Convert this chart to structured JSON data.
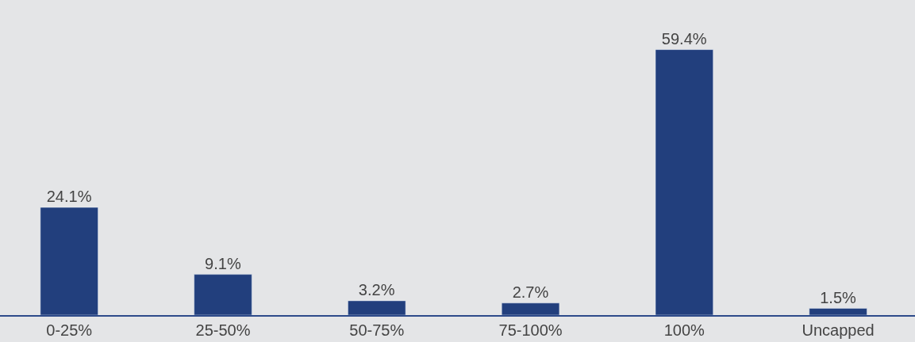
{
  "chart_data": {
    "type": "bar",
    "categories": [
      "0-25%",
      "25-50%",
      "50-75%",
      "75-100%",
      "100%",
      "Uncapped"
    ],
    "values": [
      24.1,
      9.1,
      3.2,
      2.7,
      59.4,
      1.5
    ],
    "value_labels": [
      "24.1%",
      "9.1%",
      "3.2%",
      "2.7%",
      "59.4%",
      "1.5%"
    ],
    "color": "#223f7d",
    "grid": false,
    "legend": false
  }
}
